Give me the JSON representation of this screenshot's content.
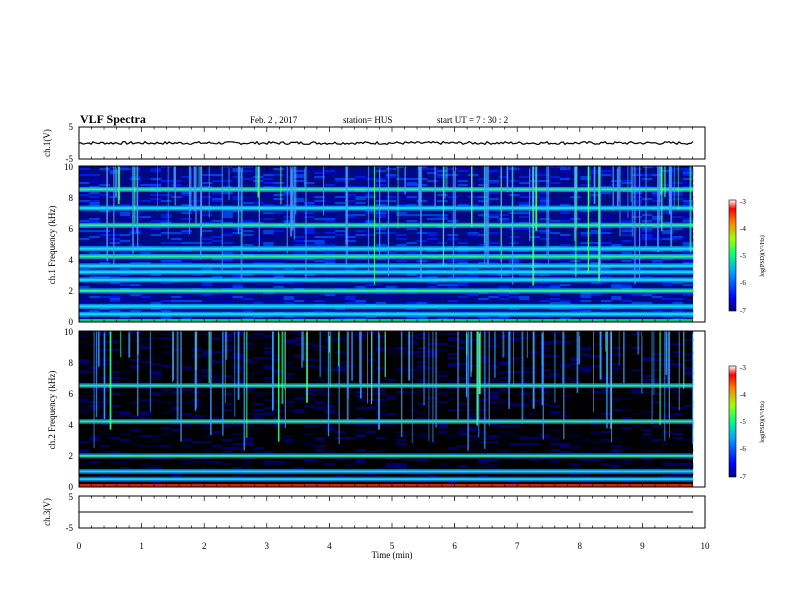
{
  "header": {
    "title": "VLF Spectra",
    "date": "Feb. 2 , 2017",
    "station": "station= HUS",
    "start": "start UT = 7 : 30 : 2"
  },
  "chart_data": [
    {
      "type": "line",
      "panel": "ch1-waveform",
      "ylabel": "ch.1(V)",
      "ylim": [
        -5,
        5
      ],
      "y_ticks": [
        "5",
        "-5"
      ],
      "level": 0,
      "series_color": "#000000"
    },
    {
      "type": "heatmap",
      "panel": "ch1-spectrogram",
      "ylabel": "ch.1 Frequency (kHz)",
      "ylim": [
        0,
        10
      ],
      "y_ticks": [
        "0",
        "2",
        "4",
        "6",
        "8",
        "10"
      ],
      "xlim": [
        0,
        10
      ],
      "emission_bands_khz": [
        0.5,
        1.0,
        2.0,
        2.7,
        3.2,
        3.6,
        4.2,
        4.7,
        6.2,
        7.3,
        8.5
      ],
      "colorbar": {
        "label": "log(PSD)(V²/Hz)",
        "range": [
          -7,
          -3
        ],
        "ticks": [
          "-3",
          "-4",
          "-5",
          "-6",
          "-7"
        ]
      }
    },
    {
      "type": "heatmap",
      "panel": "ch2-spectrogram",
      "ylabel": "ch.2 Frequency (kHz)",
      "ylim": [
        0,
        10
      ],
      "y_ticks": [
        "0",
        "2",
        "4",
        "6",
        "8",
        "10"
      ],
      "xlim": [
        0,
        10
      ],
      "emission_bands_khz": [
        0.5,
        1.0,
        2.0,
        4.2,
        6.5
      ],
      "colorbar": {
        "label": "log(PSD)(V²/Hz)",
        "range": [
          -7,
          -3
        ],
        "ticks": [
          "-3",
          "-4",
          "-5",
          "-6",
          "-7"
        ]
      }
    },
    {
      "type": "line",
      "panel": "ch3-waveform",
      "ylabel": "ch.3(V)",
      "ylim": [
        -5,
        5
      ],
      "y_ticks": [
        "5",
        "-5"
      ],
      "level": 0,
      "series_color": "#000000"
    }
  ],
  "x_axis": {
    "label": "Time (min)",
    "range": [
      0,
      10
    ],
    "ticks": [
      "0",
      "1",
      "2",
      "3",
      "4",
      "5",
      "6",
      "7",
      "8",
      "9",
      "10"
    ]
  }
}
